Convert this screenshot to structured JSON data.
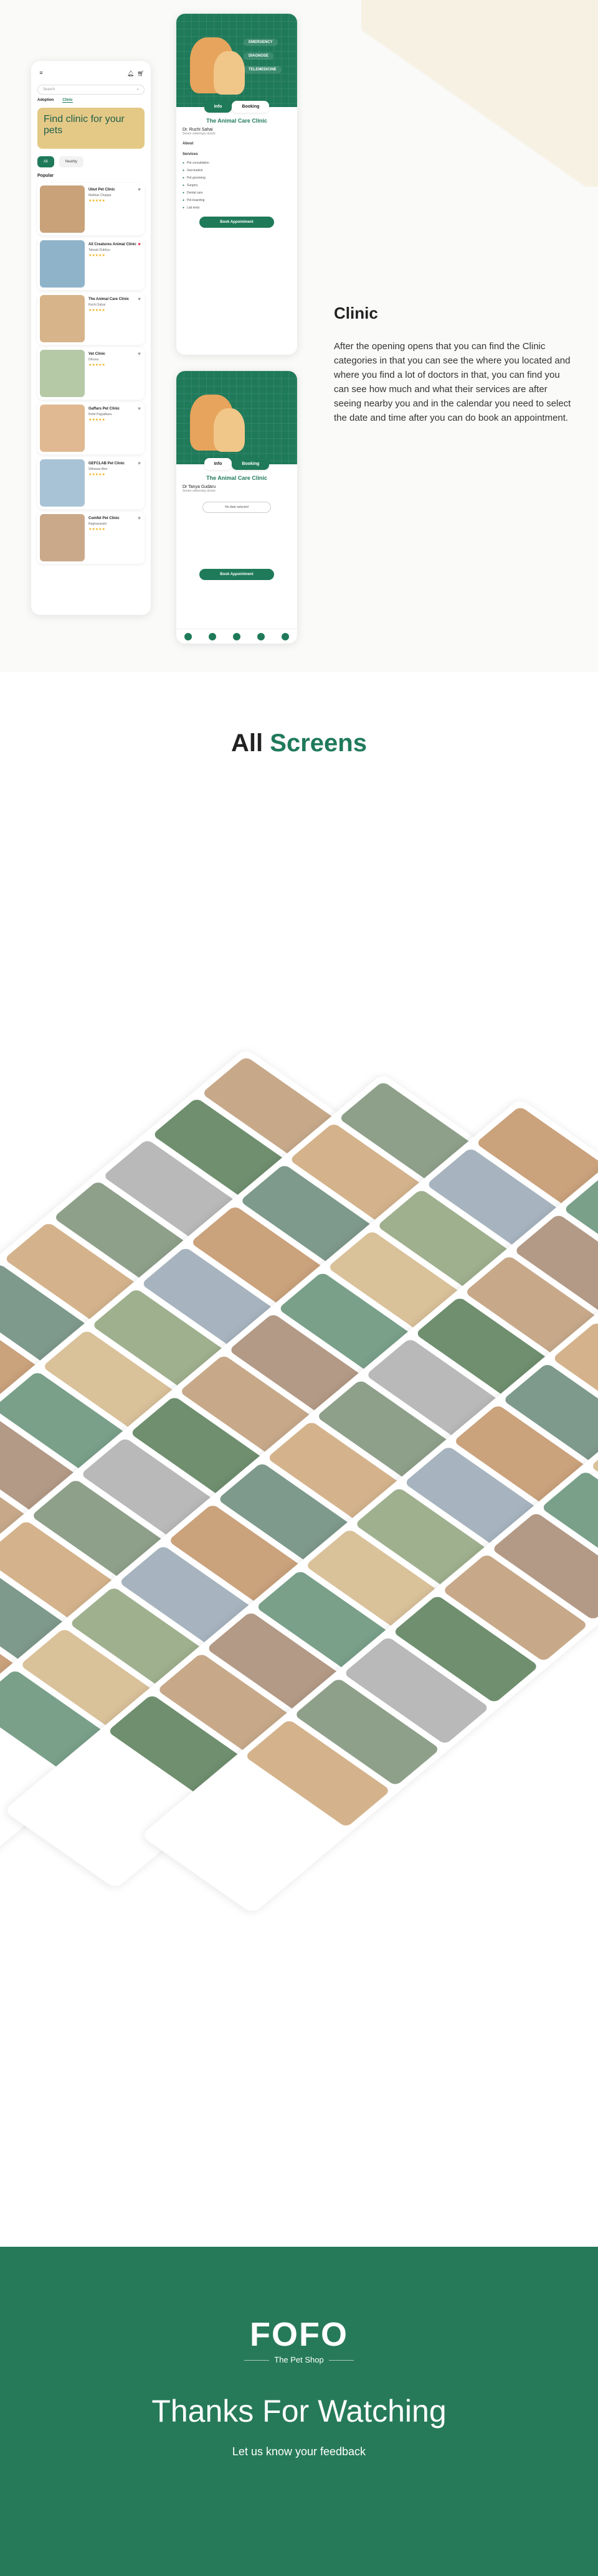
{
  "list_screen": {
    "search_placeholder": "Search",
    "tabs": [
      "Adoption",
      "Clinic"
    ],
    "banner": "Find clinic for your pets",
    "chips": [
      "All",
      "Nearby"
    ],
    "section": "Popular",
    "clinics": [
      {
        "name": "Ubut Pet Clinic",
        "sub": "Mathias Chappa",
        "rating": "★★★★★"
      },
      {
        "name": "All Creatures Animal Clinic",
        "sub": "Tahsub Dubhyu",
        "rating": "★★★★★"
      },
      {
        "name": "The Animal Care Clinic",
        "sub": "Ruchi Sahai",
        "rating": "★★★★★"
      },
      {
        "name": "Vet Clinic",
        "sub": "Dhruva",
        "rating": "★★★★★"
      },
      {
        "name": "Gaffars Pet Clinic",
        "sub": "Rohit Pagadkara",
        "rating": "★★★★★"
      },
      {
        "name": "GEFCLAB Pet Clinic",
        "sub": "Sithuwar Alen",
        "rating": "★★★★★"
      },
      {
        "name": "Comfet Pet Clinic",
        "sub": "Raghavanshi",
        "rating": "★★★★★"
      }
    ]
  },
  "detail_screen": {
    "tags": [
      "EMERGENCY",
      "DIAGNOSE",
      "TELEMEDICINE"
    ],
    "tabs": [
      "Info",
      "Booking"
    ],
    "title": "The Animal Care Clinic",
    "doctor": "Dr. Ruchi Sahai",
    "doctor_sub": "Senior veterinary doctor",
    "about_heading": "About",
    "services_heading": "Services",
    "services": [
      "Pet consultation",
      "Vaccination",
      "Pet grooming",
      "Surgery",
      "Dental care",
      "Pet boarding",
      "Lab tests"
    ],
    "cta": "Book Appointment"
  },
  "booking_screen": {
    "tabs": [
      "Info",
      "Booking"
    ],
    "title": "The Animal Care Clinic",
    "doctor": "Dr Tanya Gudaru",
    "doctor_sub": "Senior veterinary doctor",
    "slot": "No date selected",
    "cta": "Book Appointment"
  },
  "clinic_section": {
    "heading": "Clinic",
    "body": "After the opening opens that you can find the Clinic categories in that you can see the where you located and where you find a lot of doctors in that, you can find you can see how much and what their services are after seeing nearby you and in the calendar you need to select the date and time after you can do book an appointment."
  },
  "all_screens": {
    "word1": "All",
    "word2": "Screens"
  },
  "thanks": {
    "logo": "FOFO",
    "tagline": "The Pet Shop",
    "title": "Thanks For Watching",
    "subtitle": "Let us know your feedback"
  },
  "colors": {
    "primary": "#1f7a5a",
    "banner": "#e4c986",
    "star": "#f1b31c",
    "accent_red": "#e53750"
  }
}
